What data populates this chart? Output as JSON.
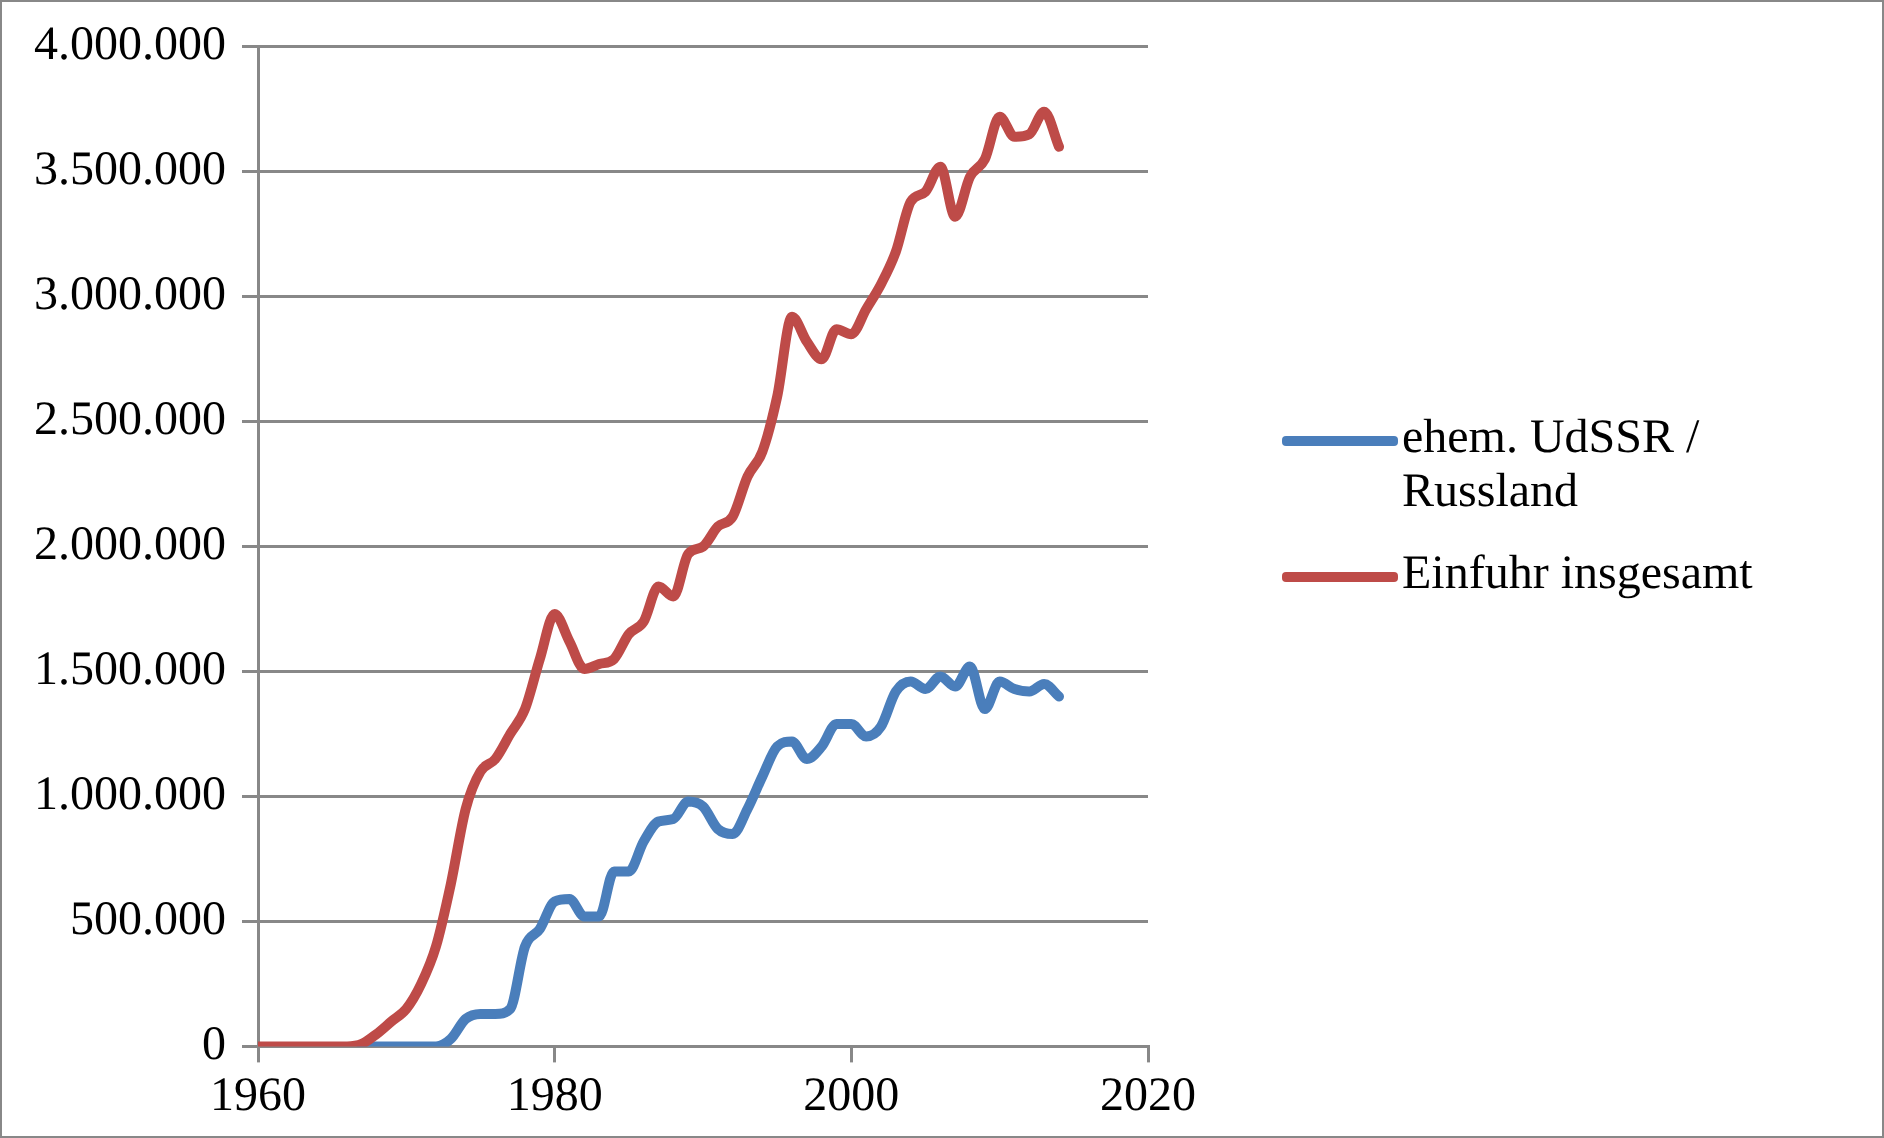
{
  "chart_data": {
    "type": "line",
    "x": [
      1960,
      1961,
      1962,
      1963,
      1964,
      1965,
      1966,
      1967,
      1968,
      1969,
      1970,
      1971,
      1972,
      1973,
      1974,
      1975,
      1976,
      1977,
      1978,
      1979,
      1980,
      1981,
      1982,
      1983,
      1984,
      1985,
      1986,
      1987,
      1988,
      1989,
      1990,
      1991,
      1992,
      1993,
      1994,
      1995,
      1996,
      1997,
      1998,
      1999,
      2000,
      2001,
      2002,
      2003,
      2004,
      2005,
      2006,
      2007,
      2008,
      2009,
      2010,
      2011,
      2012,
      2013,
      2014
    ],
    "series": [
      {
        "name": "ehem. UdSSR / Russland",
        "color": "#4a7ebb",
        "values": [
          null,
          null,
          null,
          null,
          null,
          null,
          null,
          0,
          0,
          0,
          0,
          0,
          0,
          30000,
          110000,
          130000,
          130000,
          150000,
          400000,
          470000,
          580000,
          590000,
          520000,
          520000,
          700000,
          700000,
          820000,
          900000,
          910000,
          980000,
          960000,
          870000,
          850000,
          950000,
          1080000,
          1200000,
          1220000,
          1150000,
          1200000,
          1290000,
          1290000,
          1240000,
          1280000,
          1420000,
          1460000,
          1430000,
          1480000,
          1440000,
          1520000,
          1350000,
          1460000,
          1430000,
          1420000,
          1450000,
          1400000
        ]
      },
      {
        "name": "Einfuhr insgesamt",
        "color": "#be4b48",
        "values": [
          0,
          0,
          0,
          0,
          0,
          0,
          0,
          10000,
          50000,
          100000,
          150000,
          250000,
          400000,
          650000,
          950000,
          1100000,
          1150000,
          1250000,
          1350000,
          1550000,
          1730000,
          1620000,
          1510000,
          1530000,
          1550000,
          1650000,
          1700000,
          1840000,
          1800000,
          1970000,
          2000000,
          2080000,
          2120000,
          2280000,
          2380000,
          2600000,
          2920000,
          2820000,
          2750000,
          2870000,
          2850000,
          2950000,
          3050000,
          3180000,
          3380000,
          3420000,
          3520000,
          3320000,
          3480000,
          3550000,
          3720000,
          3640000,
          3650000,
          3740000,
          3600000
        ]
      }
    ],
    "xlim": [
      1960,
      2020
    ],
    "xticks": [
      1960,
      1980,
      2000,
      2020
    ],
    "ylim": [
      0,
      4000000
    ],
    "yticks": [
      0,
      {
        "value": 500000,
        "label": "500.000"
      },
      {
        "value": 1000000,
        "label": "1.000.000"
      },
      {
        "value": 1500000,
        "label": "1.500.000"
      },
      {
        "value": 2000000,
        "label": "2.000.000"
      },
      {
        "value": 2500000,
        "label": "2.500.000"
      },
      {
        "value": 3000000,
        "label": "3.000.000"
      },
      {
        "value": 3500000,
        "label": "3.500.000"
      },
      {
        "value": 4000000,
        "label": "4.000.000"
      }
    ],
    "grid": "y",
    "legend": "right",
    "marker": "none",
    "line_style": "solid"
  }
}
